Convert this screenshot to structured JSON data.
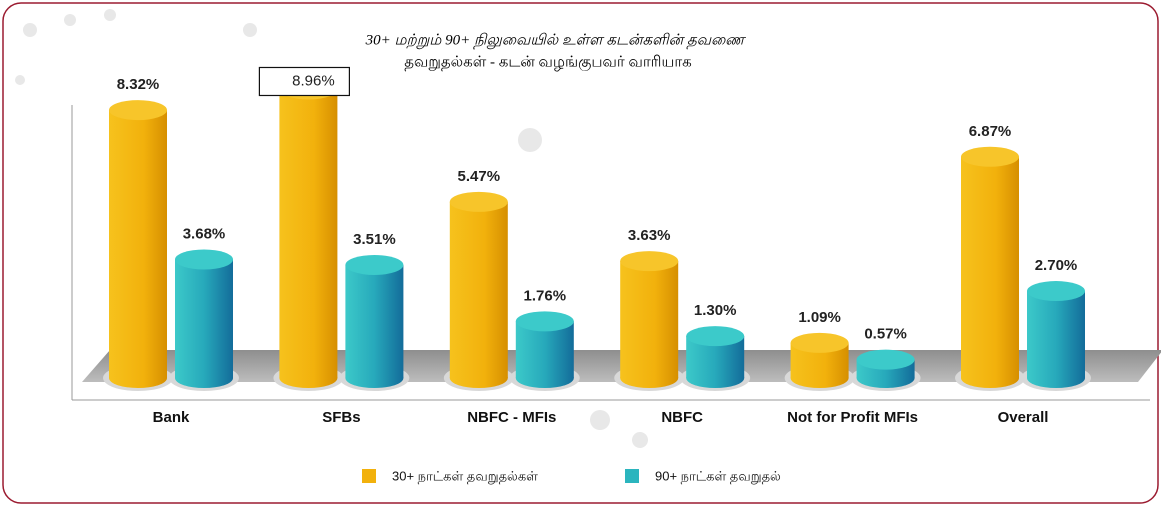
{
  "chart_data": {
    "type": "bar3d",
    "title": [
      "30+ மற்றும் 90+ நிலுவையில் உள்ள கடன்களின் தவணை",
      "தவறுதல்கள் - கடன் வழங்குபவர் வாரியாக"
    ],
    "categories": [
      "Bank",
      "SFBs",
      "NBFC - MFIs",
      "NBFC",
      "Not for Profit MFIs",
      "Overall"
    ],
    "series": [
      {
        "name": "30+ நாட்கள் தவறுதல்கள்",
        "color": "#f2b10c",
        "values": [
          8.32,
          8.96,
          5.47,
          3.63,
          1.09,
          6.87
        ],
        "value_labels": [
          "8.32%",
          "8.96%",
          "5.47%",
          "3.63%",
          "1.09%",
          "6.87%"
        ]
      },
      {
        "name": "90+ நாட்கள் தவறுதல்",
        "color": "#2bb5be",
        "values": [
          3.68,
          3.51,
          1.76,
          1.3,
          0.57,
          2.7
        ],
        "value_labels": [
          "3.68%",
          "3.51%",
          "1.76%",
          "1.30%",
          "0.57%",
          "2.70%"
        ]
      }
    ],
    "legend": "bottom"
  }
}
